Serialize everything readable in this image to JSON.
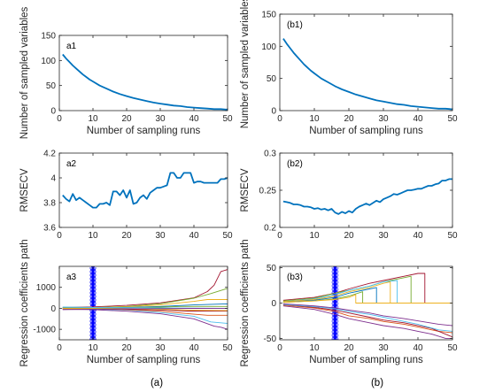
{
  "captions": [
    "(a)",
    "(b)"
  ],
  "chart_data": [
    {
      "id": "a1",
      "type": "line",
      "panel_label": "a1",
      "xlabel": "Number of sampling runs",
      "ylabel": "Number of sampled variables",
      "xlim": [
        0,
        50
      ],
      "ylim": [
        0,
        150
      ],
      "xticks": [
        0,
        10,
        20,
        30,
        40,
        50
      ],
      "yticks": [
        0,
        50,
        100,
        150
      ],
      "series": [
        {
          "color": "#0072bd",
          "x": [
            1,
            2,
            3,
            4,
            5,
            6,
            7,
            8,
            9,
            10,
            12,
            14,
            16,
            18,
            20,
            22,
            24,
            26,
            28,
            30,
            32,
            34,
            36,
            38,
            40,
            42,
            44,
            46,
            48,
            50
          ],
          "y": [
            112,
            104,
            97,
            90,
            84,
            78,
            72,
            67,
            62,
            58,
            50,
            44,
            38,
            33,
            29,
            25,
            22,
            19,
            16,
            14,
            12,
            10,
            9,
            7,
            6,
            5,
            4,
            3,
            3,
            2
          ]
        }
      ]
    },
    {
      "id": "b1",
      "type": "line",
      "panel_label": "(b1)",
      "xlabel": "Number of sampling runs",
      "ylabel": "Number of sampled variables",
      "xlim": [
        0,
        50
      ],
      "ylim": [
        0,
        150
      ],
      "xticks": [
        0,
        10,
        20,
        30,
        40,
        50
      ],
      "yticks": [
        0,
        50,
        100,
        150
      ],
      "series": [
        {
          "color": "#0072bd",
          "x": [
            1,
            2,
            3,
            4,
            5,
            6,
            7,
            8,
            9,
            10,
            12,
            14,
            16,
            18,
            20,
            22,
            24,
            26,
            28,
            30,
            32,
            34,
            36,
            38,
            40,
            42,
            44,
            46,
            48,
            50
          ],
          "y": [
            112,
            104,
            97,
            90,
            84,
            78,
            72,
            67,
            62,
            58,
            50,
            44,
            38,
            33,
            29,
            25,
            22,
            19,
            16,
            14,
            12,
            10,
            9,
            7,
            6,
            5,
            4,
            3,
            3,
            2
          ]
        }
      ]
    },
    {
      "id": "a2",
      "type": "line",
      "panel_label": "a2",
      "xlabel": "",
      "ylabel": "RMSECV",
      "xlim": [
        0,
        50
      ],
      "ylim": [
        3.6,
        4.2
      ],
      "xticks": [
        0,
        10,
        20,
        30,
        40,
        50
      ],
      "yticks": [
        3.6,
        3.8,
        4.0,
        4.2
      ],
      "ytick_labels": [
        "3.6",
        "3.8",
        "4",
        "4.2"
      ],
      "series": [
        {
          "color": "#0072bd",
          "x": [
            1,
            2,
            3,
            4,
            5,
            6,
            7,
            8,
            9,
            10,
            11,
            12,
            13,
            14,
            15,
            16,
            17,
            18,
            19,
            20,
            21,
            22,
            23,
            24,
            25,
            26,
            27,
            28,
            29,
            30,
            31,
            32,
            33,
            34,
            35,
            36,
            37,
            38,
            39,
            40,
            41,
            42,
            43,
            44,
            45,
            46,
            47,
            48,
            49,
            50
          ],
          "y": [
            3.86,
            3.83,
            3.81,
            3.87,
            3.82,
            3.84,
            3.82,
            3.8,
            3.78,
            3.76,
            3.76,
            3.79,
            3.79,
            3.8,
            3.78,
            3.89,
            3.89,
            3.86,
            3.9,
            3.84,
            3.9,
            3.79,
            3.8,
            3.84,
            3.86,
            3.83,
            3.88,
            3.9,
            3.92,
            3.92,
            3.93,
            3.94,
            4.04,
            4.04,
            4.0,
            4.0,
            4.04,
            4.04,
            4.04,
            3.96,
            3.97,
            3.97,
            3.96,
            3.96,
            3.96,
            3.96,
            3.96,
            3.99,
            3.99,
            4.0
          ]
        }
      ]
    },
    {
      "id": "b2",
      "type": "line",
      "panel_label": "(b2)",
      "xlabel": "",
      "ylabel": "RMSECV",
      "xlim": [
        0,
        50
      ],
      "ylim": [
        0.2,
        0.3
      ],
      "xticks": [
        0,
        10,
        20,
        30,
        40,
        50
      ],
      "yticks": [
        0.2,
        0.25,
        0.3
      ],
      "ytick_labels": [
        "0.2",
        "0.25",
        "0.3"
      ],
      "series": [
        {
          "color": "#0072bd",
          "x": [
            1,
            2,
            3,
            4,
            5,
            6,
            7,
            8,
            9,
            10,
            11,
            12,
            13,
            14,
            15,
            16,
            17,
            18,
            19,
            20,
            21,
            22,
            23,
            24,
            25,
            26,
            27,
            28,
            29,
            30,
            31,
            32,
            33,
            34,
            35,
            36,
            37,
            38,
            39,
            40,
            41,
            42,
            43,
            44,
            45,
            46,
            47,
            48,
            49,
            50
          ],
          "y": [
            0.235,
            0.234,
            0.233,
            0.231,
            0.231,
            0.23,
            0.228,
            0.228,
            0.227,
            0.225,
            0.226,
            0.224,
            0.225,
            0.223,
            0.225,
            0.22,
            0.218,
            0.221,
            0.219,
            0.222,
            0.22,
            0.225,
            0.228,
            0.23,
            0.232,
            0.23,
            0.233,
            0.236,
            0.234,
            0.238,
            0.24,
            0.242,
            0.245,
            0.244,
            0.246,
            0.248,
            0.25,
            0.25,
            0.251,
            0.252,
            0.252,
            0.254,
            0.256,
            0.256,
            0.258,
            0.259,
            0.263,
            0.263,
            0.265,
            0.265
          ]
        }
      ]
    },
    {
      "id": "a3",
      "type": "line",
      "panel_label": "a3",
      "xlabel": "Number of sampling runs",
      "ylabel": "Regression coefficients path",
      "xlim": [
        0,
        50
      ],
      "ylim": [
        -1500,
        2000
      ],
      "xticks": [
        0,
        10,
        20,
        30,
        40,
        50
      ],
      "yticks": [
        -1000,
        0,
        1000
      ],
      "marker_run": 10,
      "marker_color": "#0000ff",
      "series": [
        {
          "color": "#a2142f",
          "x": [
            1,
            10,
            20,
            30,
            40,
            44,
            46,
            48,
            50
          ],
          "y": [
            40,
            70,
            140,
            260,
            500,
            800,
            1100,
            1750,
            1850
          ]
        },
        {
          "color": "#7e2f8e",
          "x": [
            1,
            10,
            20,
            30,
            40,
            46,
            48,
            50
          ],
          "y": [
            -40,
            -60,
            -140,
            -260,
            -500,
            -850,
            -900,
            -1000
          ]
        },
        {
          "color": "#77ac30",
          "x": [
            1,
            10,
            20,
            30,
            40,
            45,
            50
          ],
          "y": [
            25,
            35,
            90,
            220,
            480,
            700,
            950
          ]
        },
        {
          "color": "#4dbeee",
          "x": [
            1,
            10,
            20,
            30,
            40,
            45,
            50
          ],
          "y": [
            -25,
            -35,
            -80,
            -200,
            -380,
            -650,
            -720
          ]
        },
        {
          "color": "#edb120",
          "x": [
            1,
            10,
            20,
            30,
            40,
            44,
            50
          ],
          "y": [
            15,
            30,
            70,
            160,
            330,
            420,
            420
          ]
        },
        {
          "color": "#d95319",
          "x": [
            1,
            10,
            20,
            30,
            40,
            44,
            50
          ],
          "y": [
            -15,
            -25,
            -60,
            -140,
            -280,
            -330,
            -330
          ]
        },
        {
          "color": "#0072bd",
          "x": [
            1,
            10,
            20,
            30,
            40,
            50
          ],
          "y": [
            10,
            15,
            40,
            90,
            160,
            210
          ]
        },
        {
          "color": "#a2142f",
          "x": [
            1,
            10,
            20,
            30,
            38,
            50
          ],
          "y": [
            -10,
            -15,
            -40,
            -80,
            -130,
            -130
          ]
        },
        {
          "color": "#77ac30",
          "x": [
            1,
            10,
            20,
            30,
            36,
            50
          ],
          "y": [
            5,
            10,
            25,
            60,
            90,
            90
          ]
        },
        {
          "color": "#edb120",
          "x": [
            1,
            10,
            20,
            30,
            40,
            50
          ],
          "y": [
            -5,
            -10,
            -20,
            -50,
            -90,
            -110
          ]
        },
        {
          "color": "#4dbeee",
          "x": [
            1,
            10,
            20,
            30,
            40,
            50
          ],
          "y": [
            60,
            40,
            30,
            20,
            10,
            0
          ]
        },
        {
          "color": "#7e2f8e",
          "x": [
            1,
            10,
            20,
            30,
            40,
            50
          ],
          "y": [
            -60,
            -40,
            -25,
            -15,
            -5,
            0
          ]
        }
      ]
    },
    {
      "id": "b3",
      "type": "line",
      "panel_label": "(b3)",
      "xlabel": "Number of sampling runs",
      "ylabel": "Regression coefficients path",
      "xlim": [
        0,
        50
      ],
      "ylim": [
        -52,
        52
      ],
      "xticks": [
        0,
        10,
        20,
        30,
        40,
        50
      ],
      "yticks": [
        -50,
        0,
        50
      ],
      "marker_run": 16,
      "marker_color": "#0000ff",
      "series": [
        {
          "color": "#a2142f",
          "x": [
            1,
            10,
            16,
            20,
            26,
            30,
            36,
            40,
            42,
            42.01,
            50
          ],
          "y": [
            4,
            8,
            14,
            20,
            28,
            32,
            38,
            42,
            42,
            0,
            0
          ]
        },
        {
          "color": "#7e2f8e",
          "x": [
            1,
            10,
            16,
            20,
            26,
            30,
            36,
            40,
            44,
            48,
            50
          ],
          "y": [
            -4,
            -9,
            -16,
            -22,
            -28,
            -32,
            -36,
            -40,
            -44,
            -50,
            -50
          ]
        },
        {
          "color": "#77ac30",
          "x": [
            1,
            10,
            16,
            20,
            26,
            30,
            36,
            38,
            38.01,
            50
          ],
          "y": [
            3,
            7,
            14,
            18,
            24,
            30,
            36,
            38,
            0,
            0
          ]
        },
        {
          "color": "#4dbeee",
          "x": [
            1,
            10,
            16,
            20,
            26,
            30,
            34,
            34.01,
            50
          ],
          "y": [
            2,
            6,
            12,
            18,
            24,
            30,
            32,
            0,
            0
          ]
        },
        {
          "color": "#edb120",
          "x": [
            1,
            10,
            16,
            20,
            26,
            30,
            32,
            32.01,
            50
          ],
          "y": [
            2,
            5,
            10,
            16,
            22,
            28,
            30,
            0,
            0
          ]
        },
        {
          "color": "#d95319",
          "x": [
            1,
            10,
            16,
            20,
            26,
            30,
            36,
            40,
            46,
            50
          ],
          "y": [
            -3,
            -7,
            -12,
            -18,
            -22,
            -26,
            -30,
            -34,
            -40,
            -42
          ]
        },
        {
          "color": "#0072bd",
          "x": [
            1,
            10,
            16,
            20,
            26,
            28,
            28.01,
            50
          ],
          "y": [
            1,
            4,
            8,
            14,
            20,
            22,
            0,
            0
          ]
        },
        {
          "color": "#a2142f",
          "x": [
            1,
            10,
            16,
            20,
            26,
            30,
            36,
            44,
            50
          ],
          "y": [
            -2,
            -6,
            -10,
            -14,
            -20,
            -24,
            -28,
            -36,
            -48
          ]
        },
        {
          "color": "#77ac30",
          "x": [
            1,
            10,
            16,
            20,
            24,
            24.01,
            50
          ],
          "y": [
            1,
            3,
            6,
            10,
            16,
            0,
            0
          ]
        },
        {
          "color": "#4dbeee",
          "x": [
            1,
            10,
            16,
            20,
            26,
            30,
            34,
            40,
            46,
            50
          ],
          "y": [
            -2,
            -5,
            -8,
            -12,
            -16,
            -20,
            -24,
            -30,
            -38,
            -40
          ]
        },
        {
          "color": "#edb120",
          "x": [
            1,
            10,
            16,
            20,
            22,
            22.01,
            50
          ],
          "y": [
            1,
            3,
            5,
            8,
            12,
            0,
            0
          ]
        },
        {
          "color": "#7e2f8e",
          "x": [
            1,
            10,
            16,
            20,
            26,
            30,
            36,
            46,
            50
          ],
          "y": [
            -1,
            -4,
            -7,
            -10,
            -14,
            -18,
            -22,
            -30,
            -32
          ]
        }
      ]
    }
  ]
}
